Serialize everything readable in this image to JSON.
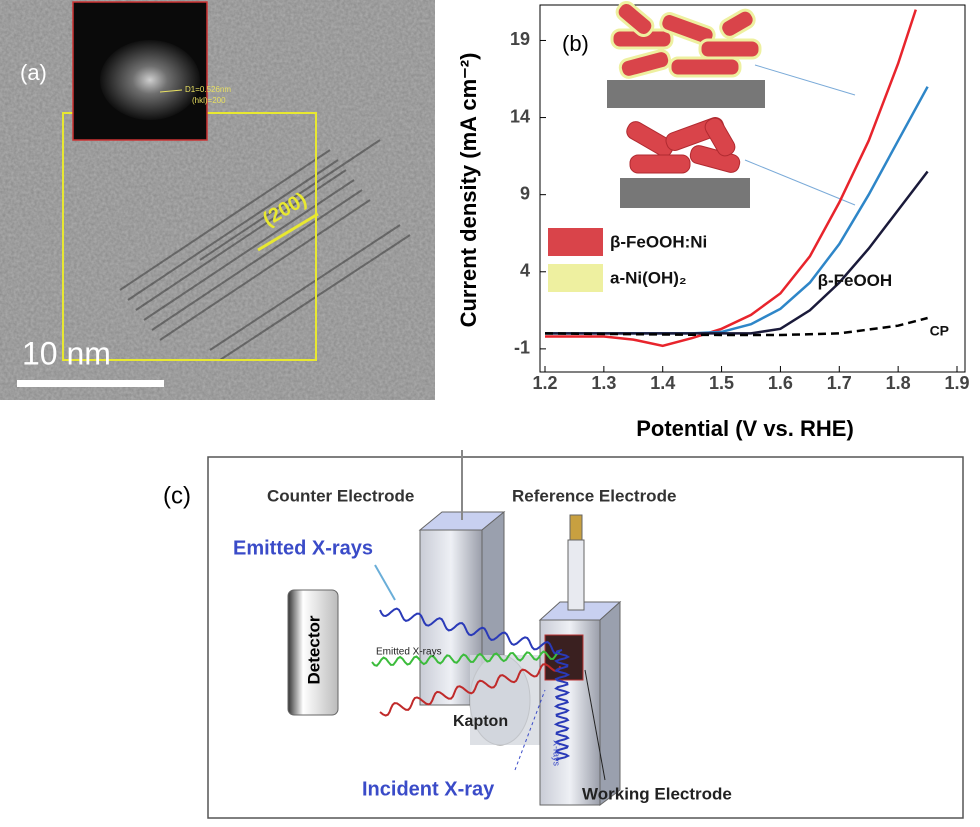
{
  "panel_a": {
    "label": "(a)",
    "scale_bar": "10 nm",
    "plane": "(200)",
    "fft_d": "D1=0.526nm",
    "fft_hkl": "(hkl)=200"
  },
  "chart_data": {
    "type": "line",
    "label": "(b)",
    "x_label": "Potential (V vs. RHE)",
    "y_label": "Current density (mA cm⁻²)",
    "xlim": [
      1.2,
      1.9
    ],
    "xticks": [
      1.2,
      1.3,
      1.4,
      1.5,
      1.6,
      1.7,
      1.8,
      1.9
    ],
    "ylim": [
      -2.5,
      21.3
    ],
    "yticks": [
      -1,
      4,
      9,
      14,
      19
    ],
    "legend_items": [
      {
        "label": "β-FeOOH:Ni",
        "color": "#d9444a"
      },
      {
        "label": "a-Ni(OH)₂",
        "color": "#eef0a0"
      }
    ],
    "series": [
      {
        "color": "#e8242c",
        "x": [
          1.2,
          1.3,
          1.35,
          1.4,
          1.45,
          1.5,
          1.55,
          1.6,
          1.65,
          1.7,
          1.75,
          1.8,
          1.83
        ],
        "values": [
          -0.2,
          -0.2,
          -0.4,
          -0.8,
          -0.3,
          0.3,
          1.2,
          2.6,
          5,
          8.5,
          12.5,
          17.5,
          21
        ]
      },
      {
        "color": "#2e86c8",
        "x": [
          1.2,
          1.3,
          1.35,
          1.4,
          1.45,
          1.5,
          1.55,
          1.6,
          1.65,
          1.7,
          1.75,
          1.8,
          1.85
        ],
        "values": [
          0,
          0,
          0,
          0,
          0,
          0.1,
          0.6,
          1.6,
          3.3,
          5.8,
          9,
          12.5,
          16
        ]
      },
      {
        "name": "β-FeOOH",
        "color": "#1a1a3a",
        "x": [
          1.2,
          1.3,
          1.35,
          1.4,
          1.45,
          1.5,
          1.55,
          1.6,
          1.65,
          1.7,
          1.75,
          1.8,
          1.85
        ],
        "values": [
          0,
          0,
          0,
          0,
          0,
          0,
          0,
          0.3,
          1.5,
          3.3,
          5.5,
          8,
          10.5
        ]
      },
      {
        "name": "CP",
        "color": "#000000",
        "dashed": true,
        "x": [
          1.2,
          1.5,
          1.6,
          1.7,
          1.8,
          1.85
        ],
        "values": [
          0,
          -0.1,
          -0.1,
          0,
          0.5,
          1
        ]
      }
    ]
  },
  "panel_c": {
    "label": "(c)",
    "counter": "Counter Electrode",
    "reference": "Reference Electrode",
    "emitted": "Emitted X-rays",
    "emitted_small": "Emitted X-rays",
    "detector": "Detector",
    "kapton": "Kapton",
    "incident": "Incident X-ray",
    "incident_small": "X-rays",
    "working": "Working Electrode"
  }
}
